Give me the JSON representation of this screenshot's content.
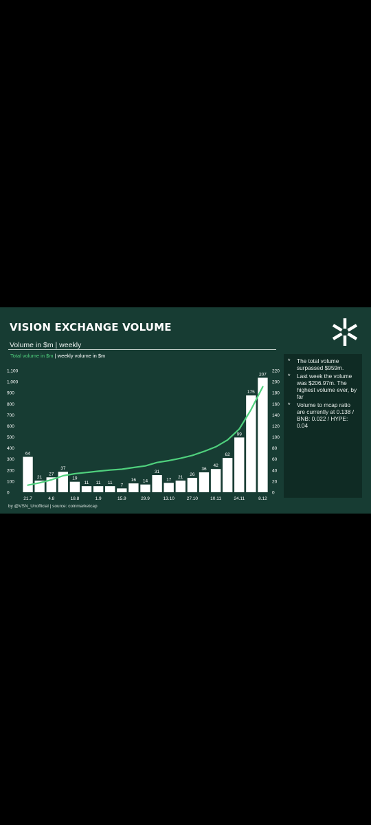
{
  "card": {
    "title": "VISION EXCHANGE VOLUME",
    "subtitle": "Volume in $m | weekly",
    "legend_total": "Total volume in $m",
    "legend_sep": "|",
    "legend_weekly": "weekly volume in $m",
    "footer": "by @VSN_Unofficial | source: coinmarketcap",
    "logo_icon": "vision-star-logo"
  },
  "notes": {
    "bullet_symbol": "*",
    "items": [
      "The total volume surpassed $959m.",
      "Last week the volume was $206.97m. The highest volume ever, by far",
      "Volume to mcap ratio are currently at 0.138 / BNB: 0.022 / HYPE: 0.04"
    ]
  },
  "colors": {
    "background": "#173c33",
    "bar": "#ffffff",
    "line": "#4fd07d",
    "panel": "#0f2b24"
  },
  "chart_data": {
    "type": "bar",
    "x_tick_labels": [
      "21.7",
      "4.8",
      "18.8",
      "1.9",
      "15.9",
      "29.9",
      "13.10",
      "27.10",
      "10.11",
      "24.11",
      "8.12"
    ],
    "left_axis_ticks": [
      "0",
      "100",
      "200",
      "300",
      "400",
      "500",
      "600",
      "700",
      "800",
      "900",
      "1,000",
      "1,100"
    ],
    "right_axis_ticks": [
      "0",
      "20",
      "40",
      "60",
      "80",
      "100",
      "120",
      "140",
      "160",
      "180",
      "200",
      "220"
    ],
    "left_ylim": [
      0,
      1100
    ],
    "right_ylim": [
      0,
      220
    ],
    "series": [
      {
        "name": "weekly volume in $m",
        "axis": "right",
        "type": "bar",
        "values": [
          64,
          21,
          27,
          37,
          19,
          11,
          11,
          11,
          7,
          16,
          14,
          31,
          17,
          21,
          26,
          36,
          42,
          62,
          99,
          175,
          207
        ],
        "data_labels": [
          "64",
          "21",
          "27",
          "37",
          "19",
          "11",
          "11",
          "11",
          "7",
          "16",
          "14",
          "31",
          "17",
          "21",
          "26",
          "36",
          "42",
          "62",
          "99",
          "175",
          "207"
        ]
      },
      {
        "name": "Total volume in $m",
        "axis": "left",
        "type": "line",
        "values": [
          64,
          85,
          112,
          149,
          168,
          179,
          190,
          201,
          208,
          224,
          238,
          269,
          286,
          307,
          333,
          369,
          411,
          473,
          572,
          747,
          954
        ]
      }
    ],
    "grid": false,
    "legend": "top-left"
  }
}
